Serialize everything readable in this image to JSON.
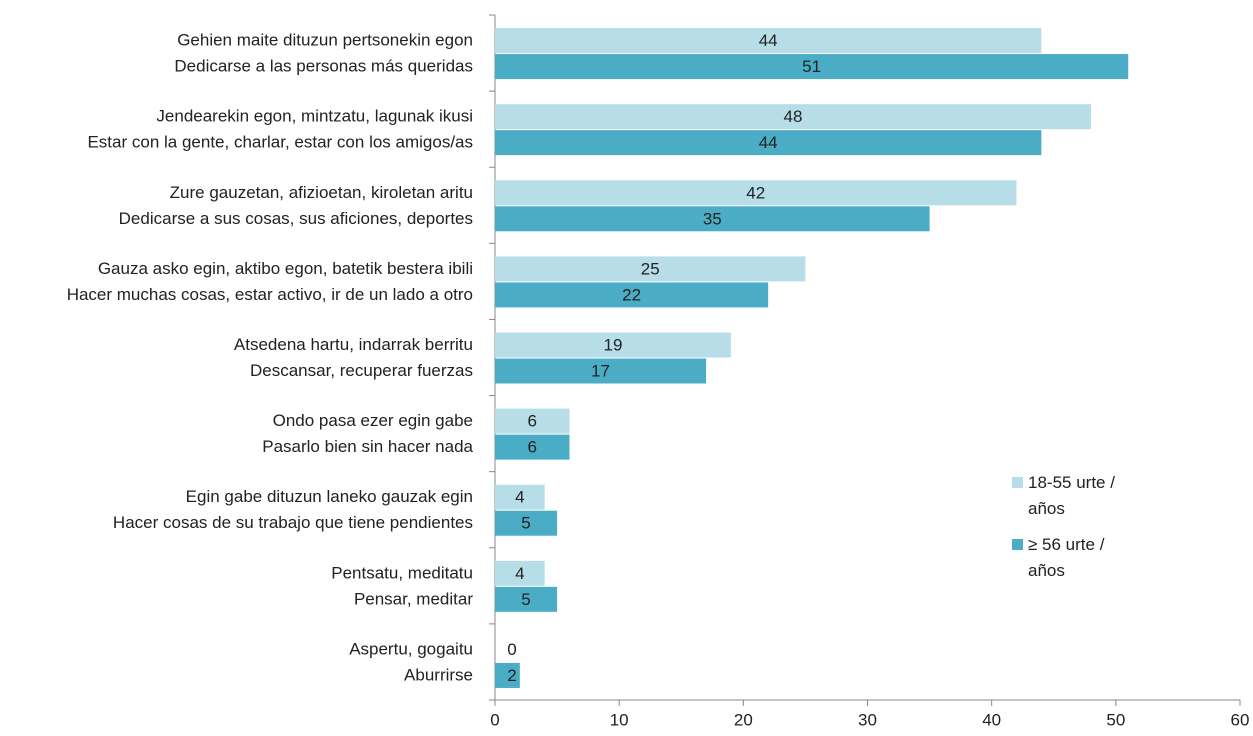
{
  "chart_data": {
    "type": "hbar",
    "categories": [
      [
        "Gehien maite dituzun pertsonekin egon",
        "Dedicarse a las personas más queridas"
      ],
      [
        "Jendearekin egon, mintzatu, lagunak ikusi",
        "Estar con la gente, charlar, estar con los amigos/as"
      ],
      [
        "Zure gauzetan, afizioetan, kiroletan aritu",
        "Dedicarse a sus cosas, sus aficiones, deportes"
      ],
      [
        "Gauza asko egin, aktibo egon, batetik bestera ibili",
        "Hacer muchas cosas, estar activo, ir de un lado a otro"
      ],
      [
        "Atsedena hartu, indarrak berritu",
        "Descansar, recuperar fuerzas"
      ],
      [
        "Ondo pasa ezer egin gabe",
        "Pasarlo bien sin hacer nada"
      ],
      [
        "Egin gabe dituzun laneko gauzak egin",
        "Hacer cosas de su trabajo que tiene pendientes"
      ],
      [
        "Pentsatu, meditatu",
        "Pensar, meditar"
      ],
      [
        "Aspertu, gogaitu",
        "Aburrirse"
      ]
    ],
    "series": [
      {
        "name": "18-55 urte / años",
        "color": "#b7dee8",
        "values": [
          44,
          48,
          42,
          25,
          19,
          6,
          4,
          4,
          0
        ]
      },
      {
        "name": "≥ 56 urte / años",
        "color": "#4bacc6",
        "values": [
          51,
          44,
          35,
          22,
          17,
          6,
          5,
          5,
          2
        ]
      }
    ],
    "xlim": [
      0,
      60
    ],
    "xticks": [
      0,
      10,
      20,
      30,
      40,
      50,
      60
    ],
    "legend": "right"
  }
}
